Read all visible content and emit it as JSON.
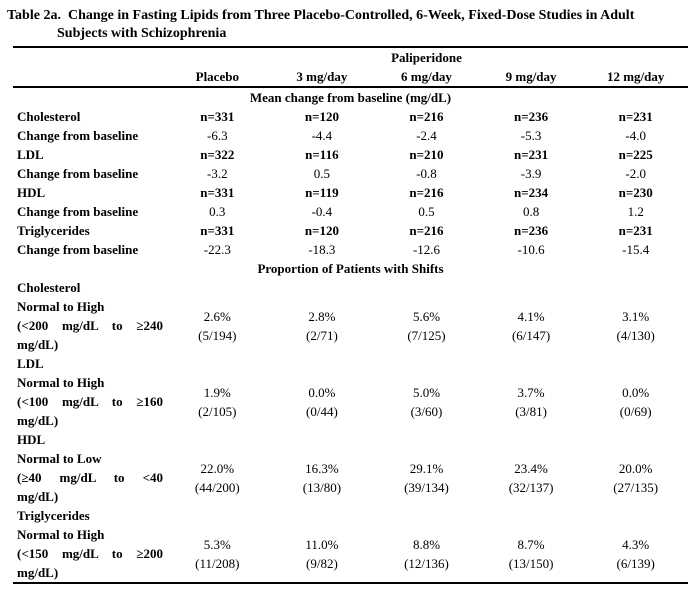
{
  "title": {
    "prefix": "Table 2a.",
    "line1": "Change in Fasting Lipids from Three Placebo-Controlled, 6-Week, Fixed-Dose Studies in Adult",
    "line2": "Subjects with Schizophrenia"
  },
  "table": {
    "drug_group_header": "Paliperidone",
    "column_headers": [
      "Placebo",
      "3 mg/day",
      "6 mg/day",
      "9 mg/day",
      "12 mg/day"
    ],
    "mean_change_section": {
      "header": "Mean change from baseline (mg/dL)",
      "rows": [
        {
          "label": "Cholesterol",
          "values": [
            "n=331",
            "n=120",
            "n=216",
            "n=236",
            "n=231"
          ],
          "values_bold": true
        },
        {
          "label": "Change from baseline",
          "values": [
            "-6.3",
            "-4.4",
            "-2.4",
            "-5.3",
            "-4.0"
          ],
          "values_bold": false
        },
        {
          "label": "LDL",
          "values": [
            "n=322",
            "n=116",
            "n=210",
            "n=231",
            "n=225"
          ],
          "values_bold": true
        },
        {
          "label": "Change from baseline",
          "values": [
            "-3.2",
            "0.5",
            "-0.8",
            "-3.9",
            "-2.0"
          ],
          "values_bold": false
        },
        {
          "label": "HDL",
          "values": [
            "n=331",
            "n=119",
            "n=216",
            "n=234",
            "n=230"
          ],
          "values_bold": true
        },
        {
          "label": "Change from baseline",
          "values": [
            "0.3",
            "-0.4",
            "0.5",
            "0.8",
            "1.2"
          ],
          "values_bold": false
        },
        {
          "label": "Triglycerides",
          "values": [
            "n=331",
            "n=120",
            "n=216",
            "n=236",
            "n=231"
          ],
          "values_bold": true
        },
        {
          "label": "Change from baseline",
          "values": [
            "-22.3",
            "-18.3",
            "-12.6",
            "-10.6",
            "-15.4"
          ],
          "values_bold": false
        }
      ]
    },
    "shift_section": {
      "header": "Proportion of Patients with Shifts",
      "groups": [
        {
          "analyte": "Cholesterol",
          "shift_label": "Normal to High",
          "range_line1": "(<200 mg/dL to ≥240",
          "range_line2": "mg/dL)",
          "percentages": [
            "2.6%",
            "2.8%",
            "5.6%",
            "4.1%",
            "3.1%"
          ],
          "fractions": [
            "(5/194)",
            "(2/71)",
            "(7/125)",
            "(6/147)",
            "(4/130)"
          ]
        },
        {
          "analyte": "LDL",
          "shift_label": "Normal to High",
          "range_line1": "(<100 mg/dL to ≥160",
          "range_line2": "mg/dL)",
          "percentages": [
            "1.9%",
            "0.0%",
            "5.0%",
            "3.7%",
            "0.0%"
          ],
          "fractions": [
            "(2/105)",
            "(0/44)",
            "(3/60)",
            "(3/81)",
            "(0/69)"
          ]
        },
        {
          "analyte": "HDL",
          "shift_label": "Normal to Low",
          "range_line1": "(≥40 mg/dL to <40",
          "range_line2": "mg/dL)",
          "percentages": [
            "22.0%",
            "16.3%",
            "29.1%",
            "23.4%",
            "20.0%"
          ],
          "fractions": [
            "(44/200)",
            "(13/80)",
            "(39/134)",
            "(32/137)",
            "(27/135)"
          ]
        },
        {
          "analyte": "Triglycerides",
          "shift_label": "Normal to High",
          "range_line1": "(<150 mg/dL to ≥200",
          "range_line2": "mg/dL)",
          "percentages": [
            "5.3%",
            "11.0%",
            "8.8%",
            "8.7%",
            "4.3%"
          ],
          "fractions": [
            "(11/208)",
            "(9/82)",
            "(12/136)",
            "(13/150)",
            "(6/139)"
          ]
        }
      ]
    }
  }
}
